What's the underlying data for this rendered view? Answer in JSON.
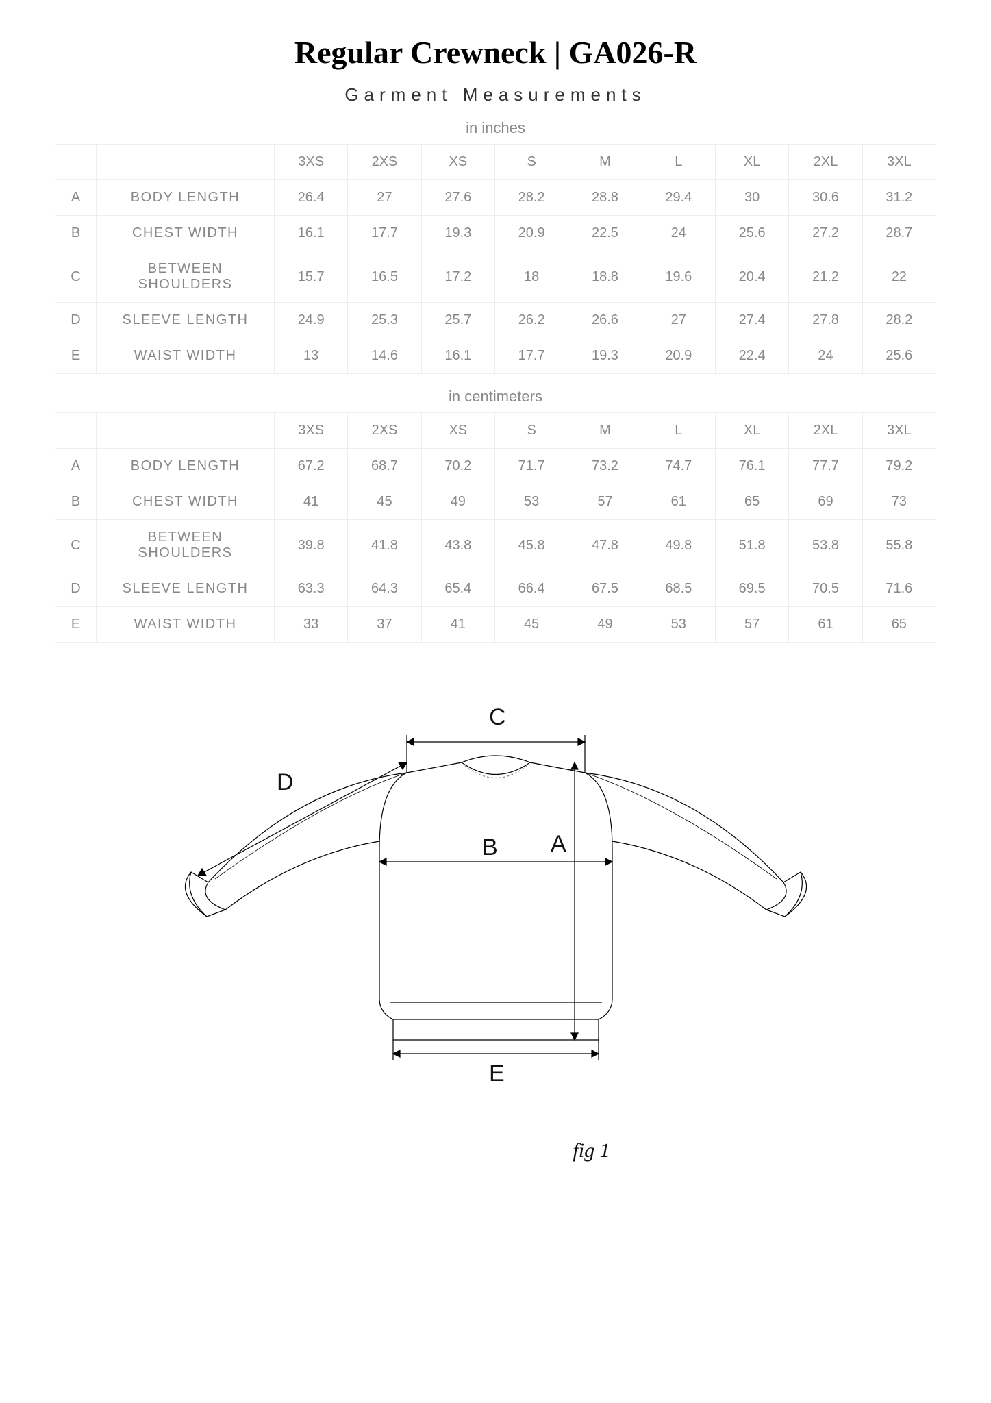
{
  "title": "Regular Crewneck | GA026-R",
  "subtitle": "Garment Measurements",
  "unit_inches": "in inches",
  "unit_cm": "in centimeters",
  "sizes": [
    "3XS",
    "2XS",
    "XS",
    "S",
    "M",
    "L",
    "XL",
    "2XL",
    "3XL"
  ],
  "inches": {
    "rows": [
      {
        "letter": "A",
        "name": "BODY LENGTH",
        "vals": [
          "26.4",
          "27",
          "27.6",
          "28.2",
          "28.8",
          "29.4",
          "30",
          "30.6",
          "31.2"
        ]
      },
      {
        "letter": "B",
        "name": "CHEST WIDTH",
        "vals": [
          "16.1",
          "17.7",
          "19.3",
          "20.9",
          "22.5",
          "24",
          "25.6",
          "27.2",
          "28.7"
        ]
      },
      {
        "letter": "C",
        "name": "BETWEEN SHOULDERS",
        "vals": [
          "15.7",
          "16.5",
          "17.2",
          "18",
          "18.8",
          "19.6",
          "20.4",
          "21.2",
          "22"
        ]
      },
      {
        "letter": "D",
        "name": "SLEEVE LENGTH",
        "vals": [
          "24.9",
          "25.3",
          "25.7",
          "26.2",
          "26.6",
          "27",
          "27.4",
          "27.8",
          "28.2"
        ]
      },
      {
        "letter": "E",
        "name": "WAIST WIDTH",
        "vals": [
          "13",
          "14.6",
          "16.1",
          "17.7",
          "19.3",
          "20.9",
          "22.4",
          "24",
          "25.6"
        ]
      }
    ]
  },
  "cm": {
    "rows": [
      {
        "letter": "A",
        "name": "BODY LENGTH",
        "vals": [
          "67.2",
          "68.7",
          "70.2",
          "71.7",
          "73.2",
          "74.7",
          "76.1",
          "77.7",
          "79.2"
        ]
      },
      {
        "letter": "B",
        "name": "CHEST WIDTH",
        "vals": [
          "41",
          "45",
          "49",
          "53",
          "57",
          "61",
          "65",
          "69",
          "73"
        ]
      },
      {
        "letter": "C",
        "name": "BETWEEN SHOULDERS",
        "vals": [
          "39.8",
          "41.8",
          "43.8",
          "45.8",
          "47.8",
          "49.8",
          "51.8",
          "53.8",
          "55.8"
        ]
      },
      {
        "letter": "D",
        "name": "SLEEVE LENGTH",
        "vals": [
          "63.3",
          "64.3",
          "65.4",
          "66.4",
          "67.5",
          "68.5",
          "69.5",
          "70.5",
          "71.6"
        ]
      },
      {
        "letter": "E",
        "name": "WAIST WIDTH",
        "vals": [
          "33",
          "37",
          "41",
          "45",
          "49",
          "53",
          "57",
          "61",
          "65"
        ]
      }
    ]
  },
  "diagram": {
    "labels": {
      "A": "A",
      "B": "B",
      "C": "C",
      "D": "D",
      "E": "E"
    },
    "caption": "fig 1",
    "stroke": "#000000",
    "stroke_width": 1.2,
    "dash": "4 3"
  },
  "colors": {
    "border": "#eeeeee",
    "text_muted": "#888888",
    "text": "#000000",
    "bg": "#ffffff"
  },
  "fonts": {
    "title_size": 46,
    "subtitle_size": 26,
    "cell_size": 20,
    "diagram_label_size": 34
  }
}
